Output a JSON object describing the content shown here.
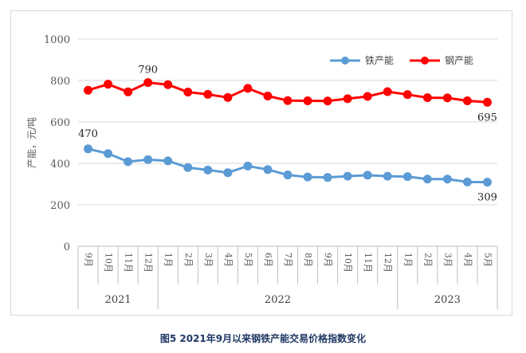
{
  "caption": "图5  2021年9月以来钢铁产能交易价格指数变化",
  "chart_data": {
    "type": "line",
    "title": "",
    "ylabel": "产能，元/吨",
    "xlabel": "",
    "ylim": [
      0,
      1000
    ],
    "yticks": [
      "1000",
      "800",
      "600",
      "400",
      "200",
      "0"
    ],
    "grid": true,
    "legend_position": "top-right",
    "categories": [
      "9月",
      "10月",
      "11月",
      "12月",
      "1月",
      "2月",
      "3月",
      "4月",
      "5月",
      "6月",
      "7月",
      "8月",
      "9月",
      "10月",
      "11月",
      "12月",
      "1月",
      "2月",
      "3月",
      "4月",
      "5月"
    ],
    "year_groups": [
      {
        "label": "2021",
        "count": 4
      },
      {
        "label": "2022",
        "count": 12
      },
      {
        "label": "2023",
        "count": 5
      }
    ],
    "series": [
      {
        "name": "铁产能",
        "color": "#5b9bd5",
        "values": [
          470,
          447,
          408,
          418,
          412,
          380,
          368,
          355,
          387,
          370,
          344,
          334,
          332,
          338,
          343,
          338,
          336,
          324,
          324,
          310,
          309
        ]
      },
      {
        "name": "钢产能",
        "color": "#ff0000",
        "values": [
          753,
          782,
          745,
          790,
          780,
          744,
          733,
          718,
          762,
          725,
          703,
          702,
          701,
          712,
          723,
          746,
          732,
          717,
          716,
          702,
          695
        ]
      }
    ],
    "annotations": [
      {
        "series": 0,
        "index": 0,
        "text": "470"
      },
      {
        "series": 0,
        "index": 20,
        "text": "309"
      },
      {
        "series": 1,
        "index": 3,
        "text": "790"
      },
      {
        "series": 1,
        "index": 20,
        "text": "695"
      }
    ]
  }
}
